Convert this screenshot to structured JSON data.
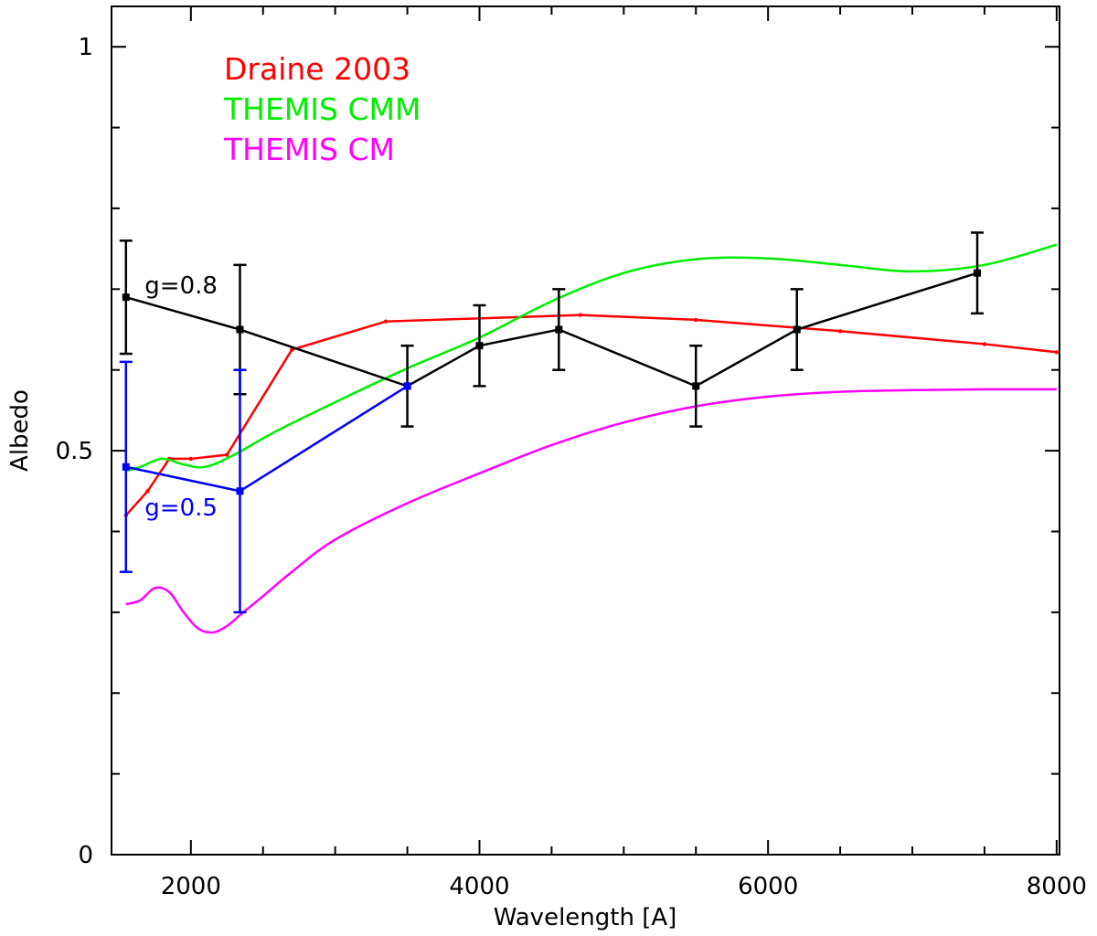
{
  "chart_data": {
    "type": "line",
    "title": "",
    "xlabel": "Wavelength [A]",
    "ylabel": "Albedo",
    "xlim": [
      1450,
      8020
    ],
    "ylim": [
      0,
      1.05
    ],
    "x_ticks": [
      2000,
      4000,
      6000,
      8000
    ],
    "x_tick_labels": [
      "2000",
      "4000",
      "6000",
      "8000"
    ],
    "y_ticks": [
      0,
      0.5,
      1
    ],
    "y_tick_labels": [
      "0",
      "0.5",
      "1"
    ],
    "x_minor_ticks": [
      2500,
      3000,
      3500,
      4500,
      5000,
      5500,
      6500,
      7000,
      7500
    ],
    "y_minor_ticks": [
      0.1,
      0.2,
      0.3,
      0.4,
      0.6,
      0.7,
      0.8,
      0.9
    ],
    "grid": false,
    "legend": [
      {
        "label": "Draine 2003",
        "color": "#ff0000"
      },
      {
        "label": "THEMIS CMM",
        "color": "#00ee00"
      },
      {
        "label": "THEMIS CM",
        "color": "#ff00ff"
      }
    ],
    "legend_position": "top-left",
    "series": [
      {
        "name": "Draine 2003",
        "color": "#ff0000",
        "style": "line-with-dots",
        "x": [
          1550,
          1700,
          1850,
          2000,
          2250,
          2700,
          3350,
          4700,
          5500,
          6500,
          7500,
          8000
        ],
        "y": [
          0.42,
          0.45,
          0.49,
          0.49,
          0.495,
          0.625,
          0.66,
          0.668,
          0.662,
          0.648,
          0.632,
          0.622
        ]
      },
      {
        "name": "THEMIS CMM",
        "color": "#00ee00",
        "style": "line",
        "x": [
          1550,
          1650,
          1800,
          1950,
          2100,
          2300,
          2600,
          3000,
          3500,
          4000,
          4500,
          5000,
          5500,
          6000,
          6500,
          7000,
          7500,
          8000
        ],
        "y": [
          0.475,
          0.48,
          0.49,
          0.483,
          0.48,
          0.495,
          0.525,
          0.56,
          0.602,
          0.64,
          0.685,
          0.72,
          0.737,
          0.738,
          0.73,
          0.722,
          0.73,
          0.755
        ]
      },
      {
        "name": "THEMIS CM",
        "color": "#ff00ff",
        "style": "line",
        "x": [
          1550,
          1650,
          1750,
          1850,
          1950,
          2050,
          2150,
          2250,
          2350,
          2500,
          2700,
          3000,
          3500,
          4000,
          4500,
          5000,
          5500,
          6000,
          6500,
          7000,
          7500,
          8000
        ],
        "y": [
          0.31,
          0.315,
          0.33,
          0.325,
          0.3,
          0.28,
          0.275,
          0.283,
          0.298,
          0.32,
          0.35,
          0.39,
          0.435,
          0.472,
          0.507,
          0.535,
          0.555,
          0.567,
          0.573,
          0.575,
          0.576,
          0.576
        ]
      },
      {
        "name": "g=0.8",
        "color": "#000000",
        "style": "line-markers-errorbars",
        "x": [
          1550,
          2340,
          3500,
          4000,
          4550,
          5500,
          6200,
          7450
        ],
        "y": [
          0.69,
          0.65,
          0.58,
          0.63,
          0.65,
          0.58,
          0.65,
          0.72
        ],
        "yerr": [
          0.07,
          0.08,
          0.05,
          0.05,
          0.05,
          0.05,
          0.05,
          0.05
        ]
      },
      {
        "name": "g=0.5",
        "color": "#0000ff",
        "style": "line-markers-errorbars",
        "x": [
          1550,
          2340,
          3500
        ],
        "y": [
          0.48,
          0.45,
          0.58
        ],
        "yerr": [
          0.13,
          0.15,
          0
        ]
      }
    ],
    "annotations": [
      {
        "text": "g=0.8",
        "color": "#000000",
        "x": 1680,
        "y": 0.695
      },
      {
        "text": "g=0.5",
        "color": "#0000ff",
        "x": 1680,
        "y": 0.42
      }
    ]
  }
}
